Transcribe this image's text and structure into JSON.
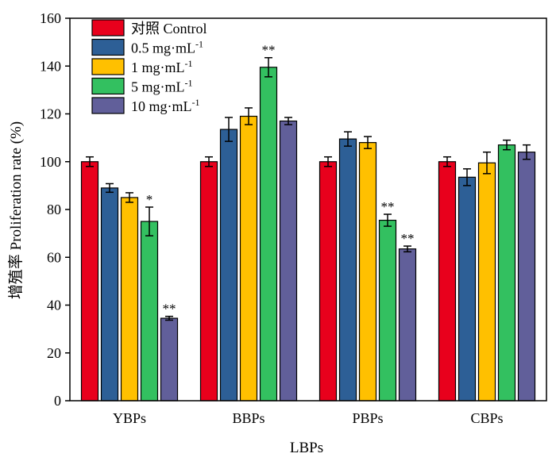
{
  "chart_data": {
    "type": "bar",
    "xlabel": "LBPs",
    "ylabel": "增殖率 Proliferation rate (%)",
    "ylim": [
      0,
      160
    ],
    "yticks": [
      0,
      20,
      40,
      60,
      80,
      100,
      120,
      140,
      160
    ],
    "categories": [
      "YBPs",
      "BBPs",
      "PBPs",
      "CBPs"
    ],
    "series": [
      {
        "name": "对照 Control",
        "color": "#e8001c",
        "values": [
          100,
          100,
          100,
          100
        ],
        "errors": [
          2,
          2,
          2,
          2
        ],
        "sig": [
          "",
          "",
          "",
          ""
        ]
      },
      {
        "name": "0.5 mg·mL",
        "sup": "-1",
        "color": "#2d5f96",
        "values": [
          89,
          113.5,
          109.5,
          93.5
        ],
        "errors": [
          1.8,
          5,
          3,
          3.5
        ],
        "sig": [
          "",
          "",
          "",
          ""
        ]
      },
      {
        "name": "1 mg·mL",
        "sup": "-1",
        "color": "#ffc000",
        "values": [
          85,
          119,
          108,
          99.5
        ],
        "errors": [
          2,
          3.5,
          2.5,
          4.5
        ],
        "sig": [
          "",
          "",
          "",
          ""
        ]
      },
      {
        "name": "5 mg·mL",
        "sup": "-1",
        "color": "#33c060",
        "values": [
          75,
          139.5,
          75.5,
          107
        ],
        "errors": [
          6,
          4,
          2.5,
          2
        ],
        "sig": [
          "*",
          "**",
          "**",
          ""
        ]
      },
      {
        "name": "10 mg·mL",
        "sup": "-1",
        "color": "#615f9a",
        "values": [
          34.5,
          117,
          63.5,
          104
        ],
        "errors": [
          0.8,
          1.5,
          1.2,
          3
        ],
        "sig": [
          "**",
          "",
          "**",
          ""
        ]
      }
    ],
    "legend_position": "top-left",
    "grid": false
  }
}
